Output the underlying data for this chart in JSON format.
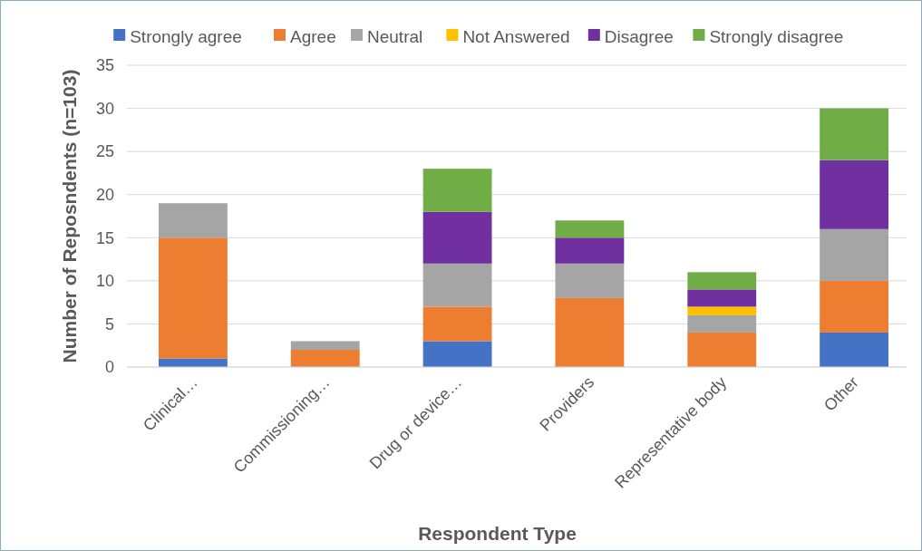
{
  "chart_data": {
    "type": "bar",
    "stacked": true,
    "xlabel": "Respondent Type",
    "ylabel": "Number of Reposndents (n=103)",
    "categories": [
      "Clinical…",
      "Commissioning…",
      "Drug or device…",
      "Providers",
      "Representative body",
      "Other"
    ],
    "series": [
      {
        "name": "Strongly agree",
        "color": "#4472c4",
        "values": [
          1,
          0,
          3,
          0,
          0,
          4
        ]
      },
      {
        "name": "Agree",
        "color": "#ed7d31",
        "values": [
          14,
          2,
          4,
          8,
          4,
          6
        ]
      },
      {
        "name": "Neutral",
        "color": "#a5a5a5",
        "values": [
          4,
          1,
          5,
          4,
          2,
          6
        ]
      },
      {
        "name": "Not Answered",
        "color": "#ffc000",
        "values": [
          0,
          0,
          0,
          0,
          1,
          0
        ]
      },
      {
        "name": "Disagree",
        "color": "#7030a0",
        "values": [
          0,
          0,
          6,
          3,
          2,
          8
        ]
      },
      {
        "name": "Strongly disagree",
        "color": "#70ad47",
        "values": [
          0,
          0,
          5,
          2,
          2,
          6
        ]
      }
    ],
    "ylim": [
      0,
      35
    ],
    "yticks": [
      0,
      5,
      10,
      15,
      20,
      25,
      30,
      35
    ],
    "grid": "y",
    "legend": "top"
  }
}
